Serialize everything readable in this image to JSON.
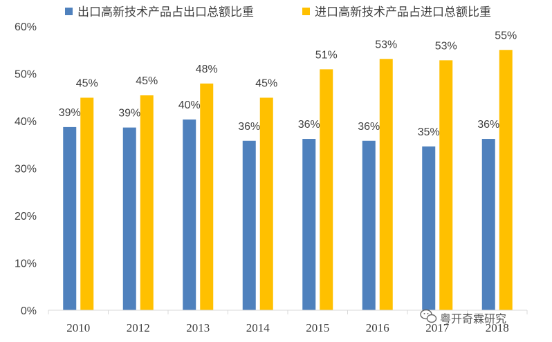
{
  "chart_data": {
    "type": "bar",
    "categories": [
      "2010",
      "2012",
      "2013",
      "2014",
      "2015",
      "2016",
      "2017",
      "2018"
    ],
    "series": [
      {
        "name": "出口高新技术产品占出口总额比重",
        "color": "#4F81BD",
        "values": [
          38.7,
          38.6,
          40.3,
          35.8,
          36.2,
          35.8,
          34.6,
          36.2
        ],
        "labels": [
          "39%",
          "39%",
          "40%",
          "36%",
          "36%",
          "36%",
          "35%",
          "36%"
        ]
      },
      {
        "name": "进口高新技术产品占进口总额比重",
        "color": "#FFC000",
        "values": [
          44.9,
          45.4,
          47.9,
          44.9,
          50.9,
          53.1,
          52.8,
          55.0
        ],
        "labels": [
          "45%",
          "45%",
          "48%",
          "45%",
          "51%",
          "53%",
          "53%",
          "55%"
        ]
      }
    ],
    "y_ticks": [
      "0%",
      "10%",
      "20%",
      "30%",
      "40%",
      "50%",
      "60%"
    ],
    "ylim": [
      0,
      60
    ],
    "grid": false,
    "legend_position": "top"
  },
  "watermark": {
    "icon": "wechat-icon",
    "text": "粤开奇霖研究"
  }
}
